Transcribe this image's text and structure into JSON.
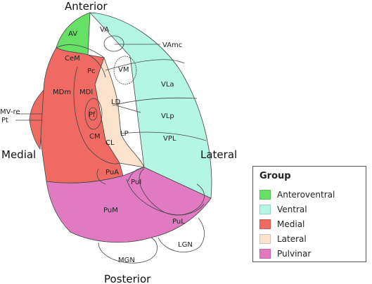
{
  "directions": {
    "anterior": "Anterior",
    "posterior": "Posterior",
    "medial": "Medial",
    "lateral": "Lateral"
  },
  "nuclei": {
    "AV": "AV",
    "VA": "VA",
    "VAmc": "VAmc",
    "CeM": "CeM",
    "Pc": "Pc",
    "VM": "VM",
    "MDm": "MDm",
    "MDl": "MDl",
    "VLa": "VLa",
    "LD": "LD",
    "VLp": "VLp",
    "Pf": "Pf",
    "CM": "CM",
    "LP": "LP",
    "CL": "CL",
    "VPL": "VPL",
    "PuA": "PuA",
    "PuI": "PuI",
    "PuM": "PuM",
    "PuL": "PuL",
    "LGN": "LGN",
    "MGN": "MGN",
    "MVre": "MV-re",
    "Pt": "Pt"
  },
  "colors": {
    "anteroventral": "#66e066",
    "ventral": "#b3f6e3",
    "medial": "#ee6a63",
    "lateral": "#fbe2cc",
    "pulvinar": "#e07ac1"
  },
  "legend": {
    "title": "Group",
    "items": [
      {
        "label": "Anteroventral",
        "color": "#66e066"
      },
      {
        "label": "Ventral",
        "color": "#b3f6e3"
      },
      {
        "label": "Medial",
        "color": "#ee6a63"
      },
      {
        "label": "Lateral",
        "color": "#fbe2cc"
      },
      {
        "label": "Pulvinar",
        "color": "#e07ac1"
      }
    ]
  }
}
